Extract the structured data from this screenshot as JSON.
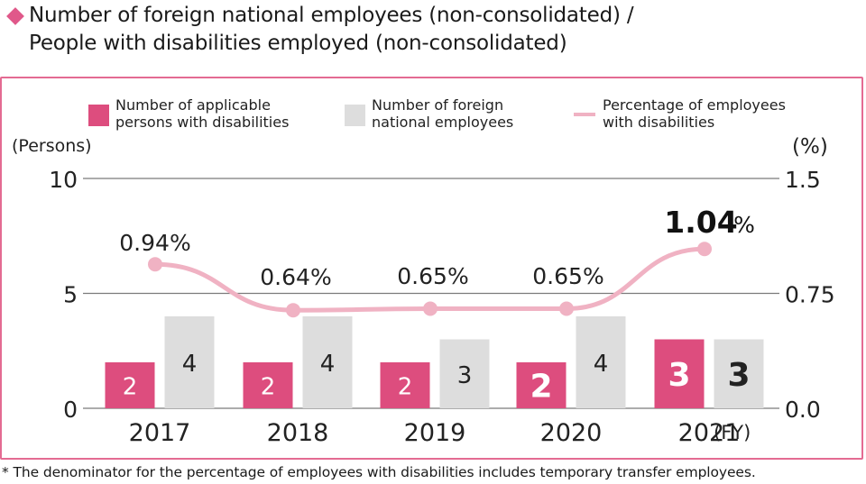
{
  "header": {
    "title_line1": "Number of foreign national employees (non-consolidated) /",
    "title_line2": "People with disabilities employed (non-consolidated)",
    "bullet_icon": "diamond-icon",
    "bullet_color": "#e0588a"
  },
  "footnote": "* The denominator for the percentage of employees with disabilities includes temporary transfer employees.",
  "colors": {
    "frame": "#e46b92",
    "disabled_bar": "#dd4d7e",
    "foreign_bar": "#dddddd",
    "line": "#f0b2c3",
    "grid": "#7a7a7a"
  },
  "chart_data": {
    "type": "bar",
    "categories": [
      "2017",
      "2018",
      "2019",
      "2020",
      "2021"
    ],
    "x_unit_label": "(FY)",
    "left_axis": {
      "label": "(Persons)",
      "ticks": [
        "0",
        "5",
        "10"
      ],
      "range": [
        0,
        10
      ]
    },
    "right_axis": {
      "label": "(%)",
      "ticks": [
        "0.0",
        "0.75",
        "1.5"
      ],
      "range": [
        0,
        1.5
      ]
    },
    "grid": true,
    "legend_position": "top",
    "series": [
      {
        "name": "Number of applicable persons with disabilities",
        "legend_lines": [
          "Number of applicable",
          "persons with disabilities"
        ],
        "type": "bar",
        "axis": "left",
        "values": [
          2,
          2,
          2,
          2,
          3
        ],
        "labels": [
          "2",
          "2",
          "2",
          "2",
          "3"
        ],
        "bold": [
          false,
          false,
          false,
          true,
          true
        ]
      },
      {
        "name": "Number of foreign national employees",
        "legend_lines": [
          "Number of foreign",
          "national employees"
        ],
        "type": "bar",
        "axis": "left",
        "values": [
          4,
          4,
          3,
          4,
          3
        ],
        "labels": [
          "4",
          "4",
          "3",
          "4",
          "3"
        ],
        "bold": [
          false,
          false,
          false,
          false,
          true
        ]
      },
      {
        "name": "Percentage of employees with disabilities",
        "legend_lines": [
          "Percentage of employees",
          "with disabilities"
        ],
        "type": "line",
        "axis": "right",
        "values": [
          0.94,
          0.64,
          0.65,
          0.65,
          1.04
        ],
        "labels": [
          "0.94%",
          "0.64%",
          "0.65%",
          "0.65%",
          "1.04"
        ],
        "label_suffix": [
          "",
          "",
          "",
          "",
          "%"
        ],
        "bold": [
          false,
          false,
          false,
          false,
          true
        ]
      }
    ]
  }
}
